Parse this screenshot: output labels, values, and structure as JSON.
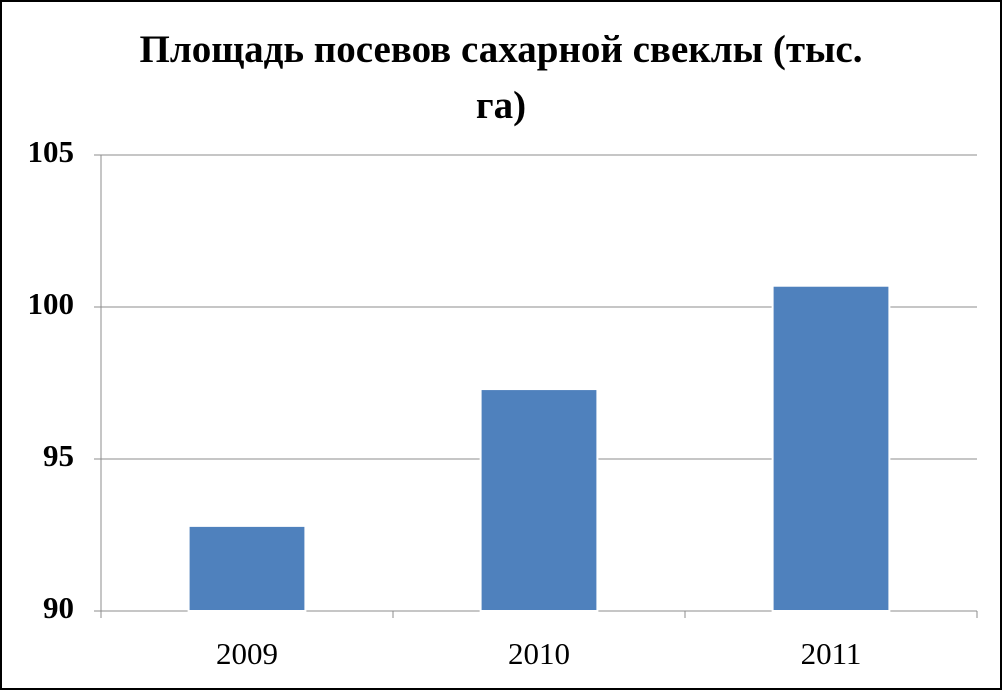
{
  "chart_data": {
    "type": "bar",
    "title": "Площадь посевов сахарной свеклы (тыс. га)",
    "categories": [
      "2009",
      "2010",
      "2011"
    ],
    "values": [
      92.8,
      97.3,
      100.7
    ],
    "color": "#4f81bd",
    "ylim": [
      90,
      105
    ],
    "yticks": [
      90,
      95,
      100,
      105
    ],
    "grid": true
  }
}
